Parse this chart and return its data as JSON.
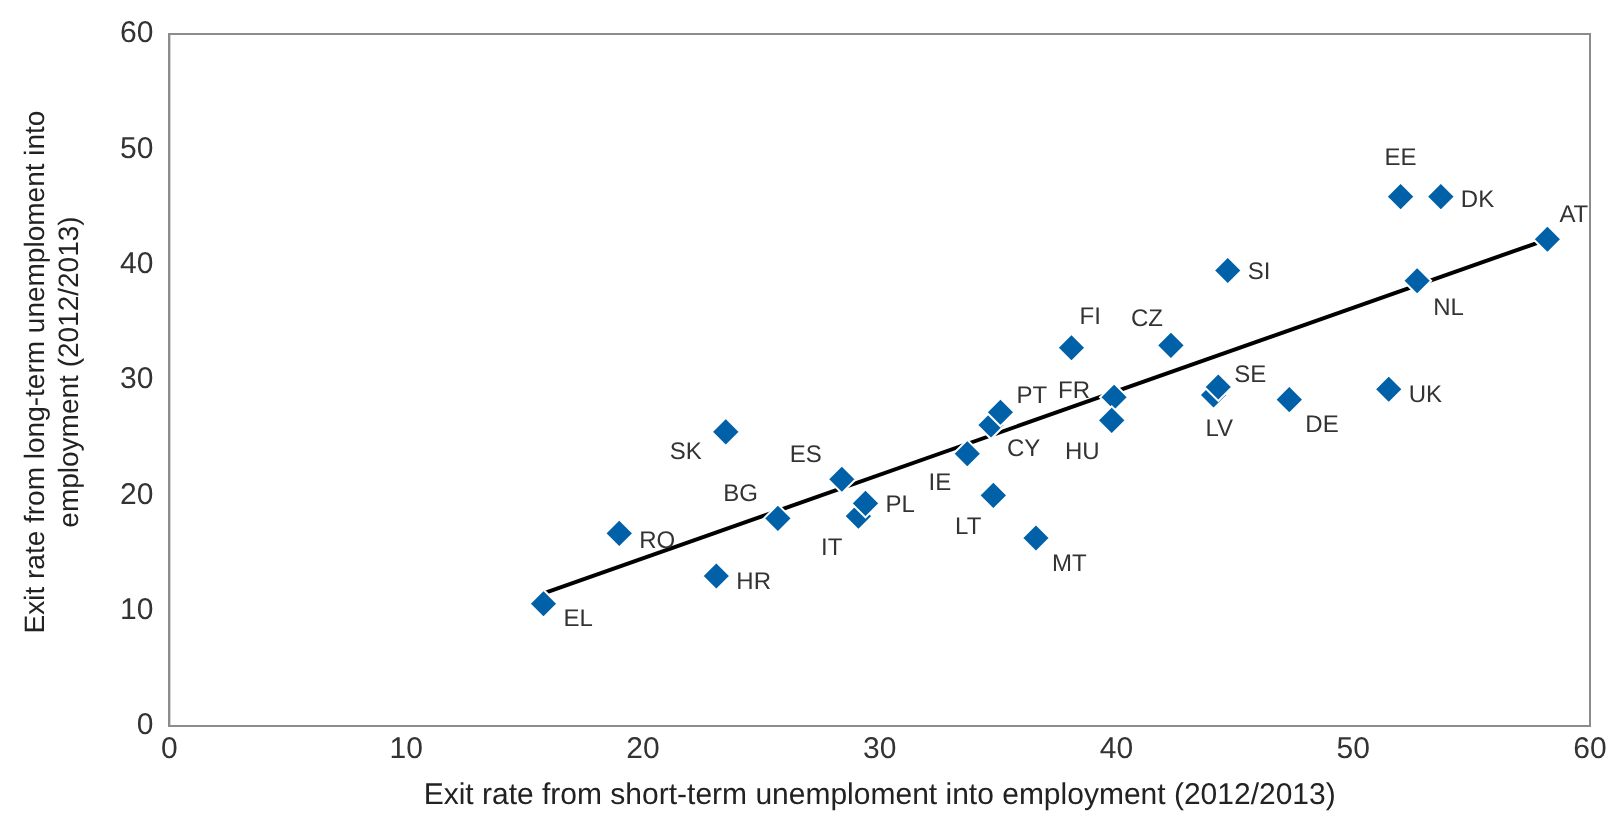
{
  "chart_data": {
    "type": "scatter",
    "xlabel": "Exit rate from short-term unemploment into employment (2012/2013)",
    "ylabel": "Exit rate from  long-term unemploment into employment (2012/2013)",
    "xlim": [
      0,
      60
    ],
    "xticks": [
      0,
      10,
      20,
      30,
      40,
      50,
      60
    ],
    "ylim": [
      0,
      60
    ],
    "yticks": [
      0,
      10,
      20,
      30,
      40,
      50,
      60
    ],
    "grid": false,
    "legend": false,
    "marker": "diamond",
    "series": [
      {
        "color": "#0061a8",
        "x": [
          15.8,
          19.0,
          23.1,
          23.5,
          25.7,
          28.4,
          29.1,
          29.4,
          33.7,
          34.7,
          35.1,
          34.8,
          36.6,
          38.1,
          39.9,
          39.8,
          42.3,
          44.7,
          44.1,
          44.3,
          47.3,
          51.5,
          52.0,
          53.7,
          52.7,
          58.2
        ],
        "values": [
          10.6,
          16.7,
          13.0,
          25.5,
          18.0,
          21.4,
          18.2,
          19.3,
          23.6,
          26.1,
          27.2,
          20.0,
          16.3,
          32.8,
          28.5,
          26.5,
          33.0,
          39.5,
          28.7,
          29.4,
          28.3,
          29.2,
          45.9,
          45.9,
          38.6,
          42.2
        ]
      },
      {
        "type": "line",
        "marker": "none",
        "color": "#000000",
        "x": [
          15.8,
          58.2
        ],
        "values": [
          11.5,
          42.2
        ]
      }
    ],
    "annotations": [
      {
        "text": "EL",
        "x": 15.8,
        "y": 10.6
      },
      {
        "text": "RO",
        "x": 19.0,
        "y": 16.7
      },
      {
        "text": "HR",
        "x": 23.1,
        "y": 13.0
      },
      {
        "text": "SK",
        "x": 23.5,
        "y": 25.5
      },
      {
        "text": "BG",
        "x": 25.7,
        "y": 18.0
      },
      {
        "text": "ES",
        "x": 28.4,
        "y": 21.4
      },
      {
        "text": "IT",
        "x": 29.1,
        "y": 18.2
      },
      {
        "text": "PL",
        "x": 29.4,
        "y": 19.3
      },
      {
        "text": "IE",
        "x": 33.7,
        "y": 23.6
      },
      {
        "text": "CY",
        "x": 34.7,
        "y": 26.1
      },
      {
        "text": "PT",
        "x": 35.1,
        "y": 27.2
      },
      {
        "text": "LT",
        "x": 34.8,
        "y": 20.0
      },
      {
        "text": "MT",
        "x": 36.6,
        "y": 16.3
      },
      {
        "text": "FI",
        "x": 38.1,
        "y": 32.8
      },
      {
        "text": "FR",
        "x": 39.9,
        "y": 28.5
      },
      {
        "text": "HU",
        "x": 39.8,
        "y": 26.5
      },
      {
        "text": "CZ",
        "x": 42.3,
        "y": 33.0
      },
      {
        "text": "SI",
        "x": 44.7,
        "y": 39.5
      },
      {
        "text": "LV",
        "x": 44.1,
        "y": 28.7
      },
      {
        "text": "SE",
        "x": 44.3,
        "y": 29.4
      },
      {
        "text": "DE",
        "x": 47.3,
        "y": 28.3
      },
      {
        "text": "UK",
        "x": 51.5,
        "y": 29.2
      },
      {
        "text": "EE",
        "x": 52.0,
        "y": 45.9
      },
      {
        "text": "DK",
        "x": 53.7,
        "y": 45.9
      },
      {
        "text": "NL",
        "x": 52.7,
        "y": 38.6
      },
      {
        "text": "AT",
        "x": 58.2,
        "y": 42.2
      }
    ]
  }
}
